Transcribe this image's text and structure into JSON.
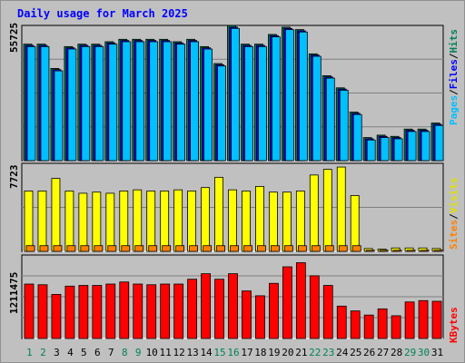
{
  "title": "Daily usage for March 2025",
  "colors": {
    "background": "#c0c0c0",
    "title": "#0000ff",
    "hits": "#00805c",
    "files": "#0000ff",
    "pages": "#00c0ff",
    "visits": "#ffff00",
    "sites": "#ff8000",
    "kbytes": "#ff0000",
    "weekend_day": "#00805c",
    "weekday": "#000000"
  },
  "chart_data": [
    {
      "type": "bar",
      "ylabel_parts": [
        "Pages",
        "Files",
        "Hits"
      ],
      "ymax_label": "55725",
      "ylim": [
        0,
        55725
      ],
      "categories": [
        "1",
        "2",
        "3",
        "4",
        "5",
        "6",
        "7",
        "8",
        "9",
        "10",
        "11",
        "12",
        "13",
        "14",
        "15",
        "16",
        "17",
        "18",
        "19",
        "20",
        "21",
        "22",
        "23",
        "24",
        "25",
        "26",
        "27",
        "28",
        "29",
        "30",
        "31"
      ],
      "series": [
        {
          "name": "Hits",
          "values": [
            48000,
            48000,
            38000,
            47000,
            48000,
            48000,
            49000,
            50000,
            50000,
            50000,
            50000,
            49000,
            50000,
            47000,
            40000,
            55725,
            48000,
            48000,
            52000,
            55000,
            54000,
            44000,
            35000,
            30000,
            20000,
            9500,
            10500,
            10000,
            13000,
            13000,
            15500
          ]
        },
        {
          "name": "Files",
          "values": [
            47500,
            47500,
            37500,
            46500,
            47500,
            47500,
            48500,
            49500,
            49500,
            49500,
            49500,
            48500,
            49500,
            46500,
            39500,
            55000,
            47500,
            47500,
            51500,
            54500,
            53500,
            43500,
            34500,
            29500,
            19500,
            9000,
            10000,
            9500,
            12500,
            12500,
            15000
          ]
        },
        {
          "name": "Pages",
          "values": [
            47000,
            47000,
            37000,
            46000,
            47000,
            47000,
            48000,
            49000,
            49000,
            49000,
            49000,
            48000,
            49000,
            46000,
            39000,
            54500,
            47000,
            47000,
            51000,
            54000,
            53000,
            43000,
            34000,
            29000,
            19000,
            8500,
            9500,
            9000,
            12000,
            12000,
            14500
          ]
        }
      ]
    },
    {
      "type": "bar",
      "ylabel_parts": [
        "Sites",
        "Visits"
      ],
      "ymax_label": "7723",
      "ylim": [
        0,
        7723
      ],
      "categories": [
        "1",
        "2",
        "3",
        "4",
        "5",
        "6",
        "7",
        "8",
        "9",
        "10",
        "11",
        "12",
        "13",
        "14",
        "15",
        "16",
        "17",
        "18",
        "19",
        "20",
        "21",
        "22",
        "23",
        "24",
        "25",
        "26",
        "27",
        "28",
        "29",
        "30",
        "31"
      ],
      "series": [
        {
          "name": "Visits",
          "values": [
            5300,
            5300,
            6400,
            5300,
            5100,
            5200,
            5100,
            5300,
            5400,
            5300,
            5300,
            5400,
            5300,
            5600,
            6500,
            5400,
            5300,
            5700,
            5200,
            5200,
            5300,
            6700,
            7200,
            7400,
            4900,
            250,
            200,
            300,
            300,
            300,
            250
          ]
        },
        {
          "name": "Sites",
          "values": [
            500,
            500,
            500,
            500,
            500,
            500,
            500,
            500,
            500,
            500,
            500,
            500,
            500,
            500,
            500,
            500,
            500,
            500,
            500,
            500,
            500,
            500,
            500,
            500,
            500,
            100,
            100,
            100,
            100,
            100,
            100
          ]
        }
      ]
    },
    {
      "type": "bar",
      "ylabel_parts": [
        "KBytes"
      ],
      "ymax_label": "1211475",
      "ylim": [
        0,
        1211475
      ],
      "categories": [
        "1",
        "2",
        "3",
        "4",
        "5",
        "6",
        "7",
        "8",
        "9",
        "10",
        "11",
        "12",
        "13",
        "14",
        "15",
        "16",
        "17",
        "18",
        "19",
        "20",
        "21",
        "22",
        "23",
        "24",
        "25",
        "26",
        "27",
        "28",
        "29",
        "30",
        "31"
      ],
      "series": [
        {
          "name": "KBytes",
          "values": [
            790000,
            780000,
            640000,
            760000,
            770000,
            770000,
            790000,
            820000,
            790000,
            780000,
            790000,
            790000,
            860000,
            940000,
            860000,
            940000,
            690000,
            620000,
            800000,
            1040000,
            1100000,
            910000,
            770000,
            470000,
            400000,
            340000,
            430000,
            330000,
            530000,
            550000,
            540000
          ]
        }
      ]
    }
  ],
  "weekend_days": [
    "1",
    "2",
    "8",
    "9",
    "15",
    "16",
    "22",
    "23",
    "29",
    "30"
  ]
}
